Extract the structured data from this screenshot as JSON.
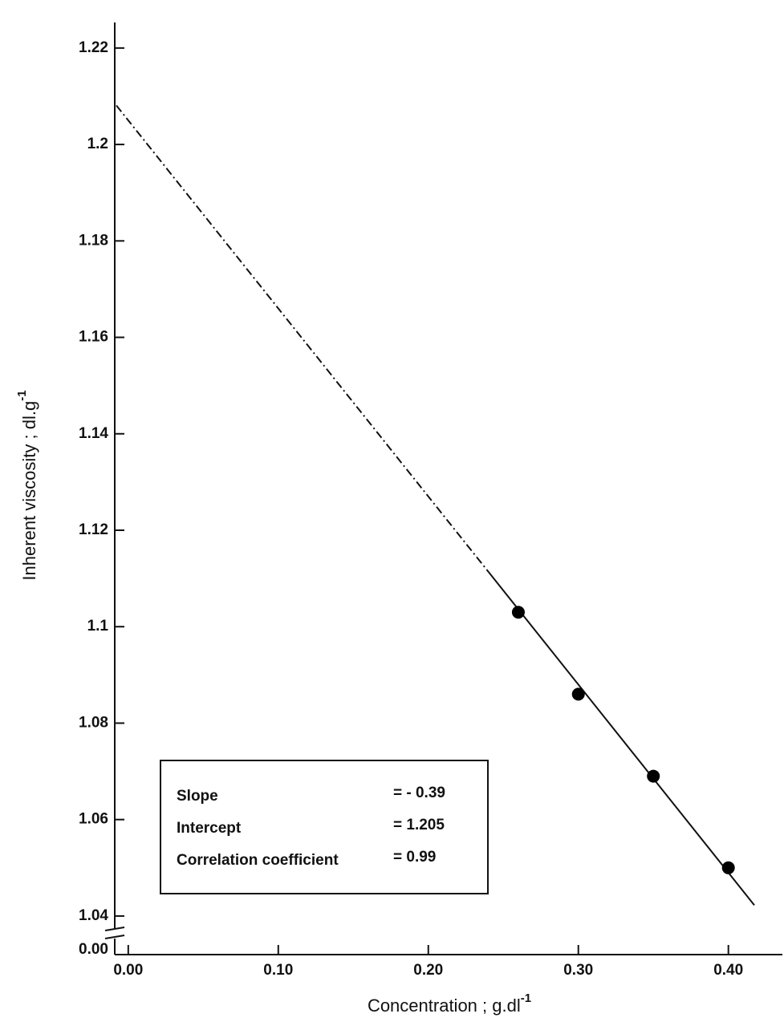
{
  "chart_data": {
    "type": "scatter",
    "x_label": {
      "text": "Concentration  ;  g.dl",
      "sup": "-1"
    },
    "y_label": {
      "text": "Inherent viscosity  ;  dl.g",
      "sup": "-1"
    },
    "y_origin_label": "0.00",
    "series": [
      {
        "color": "#000000",
        "x": [
          0.26,
          0.3,
          0.35,
          0.4
        ],
        "values": [
          1.103,
          1.086,
          1.069,
          1.05
        ]
      }
    ],
    "xlim": [
      -0.009,
      0.436
    ],
    "xticks": [
      {
        "value": 0,
        "label": "0.00"
      },
      {
        "value": 0.1,
        "label": "0.10"
      },
      {
        "value": 0.2,
        "label": "0.20"
      },
      {
        "value": 0.3,
        "label": "0.30"
      },
      {
        "value": 0.4,
        "label": "0.40"
      }
    ],
    "ylim": [
      1.032,
      1.2253
    ],
    "yticks": [
      1.04,
      1.06,
      1.08,
      1.1,
      1.12,
      1.14,
      1.16,
      1.18,
      1.2,
      1.22
    ],
    "annotation": [
      {
        "label": "Slope",
        "value": -0.39,
        "value_label": "= - 0.39"
      },
      {
        "label": "Intercept",
        "value": 1.205,
        "value_label": "= 1.205"
      },
      {
        "label": "Correlation  coefficient",
        "value": 0.99,
        "value_label": "= 0.99"
      }
    ]
  }
}
